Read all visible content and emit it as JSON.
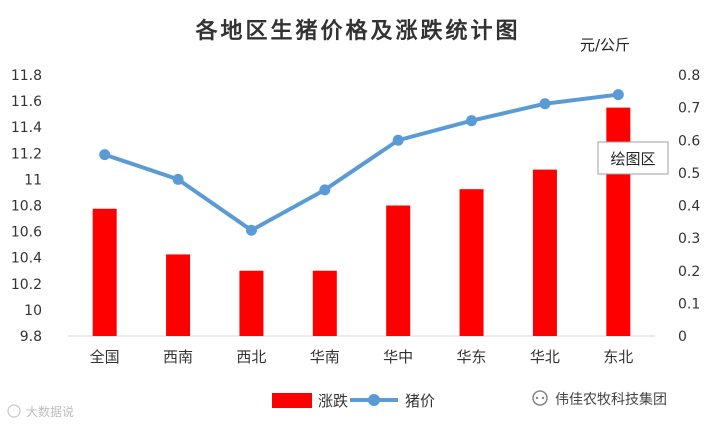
{
  "chart_data": {
    "type": "bar+line",
    "title": "各地区生猪价格及涨跌统计图",
    "unit_label": "元/公斤",
    "categories": [
      "全国",
      "西南",
      "西北",
      "华南",
      "华中",
      "华东",
      "华北",
      "东北"
    ],
    "series": [
      {
        "name": "涨跌",
        "type": "bar",
        "axis": "right",
        "color": "#ff0000",
        "values": [
          0.39,
          0.25,
          0.2,
          0.2,
          0.4,
          0.45,
          0.51,
          0.7
        ]
      },
      {
        "name": "猪价",
        "type": "line",
        "axis": "left",
        "color": "#5b9bd5",
        "values": [
          11.19,
          11.0,
          10.61,
          10.92,
          11.3,
          11.45,
          11.58,
          11.65
        ]
      }
    ],
    "left_axis": {
      "ylim": [
        9.8,
        11.8
      ],
      "ticks": [
        "9.8",
        "10",
        "10.2",
        "10.4",
        "10.6",
        "10.8",
        "11",
        "11.2",
        "11.4",
        "11.6",
        "11.8"
      ]
    },
    "right_axis": {
      "ylim": [
        0,
        0.8
      ],
      "ticks": [
        "0",
        "0.1",
        "0.2",
        "0.3",
        "0.4",
        "0.5",
        "0.6",
        "0.7",
        "0.8"
      ]
    },
    "grid": false,
    "legend_position": "bottom"
  },
  "tooltip": {
    "label": "绘图区"
  },
  "footer": {
    "publisher": "伟佳农牧科技集团",
    "watermark": "大数据说"
  },
  "colors": {
    "bar": "#ff0000",
    "line": "#5b9bd5",
    "axis": "#d9d9d9"
  }
}
